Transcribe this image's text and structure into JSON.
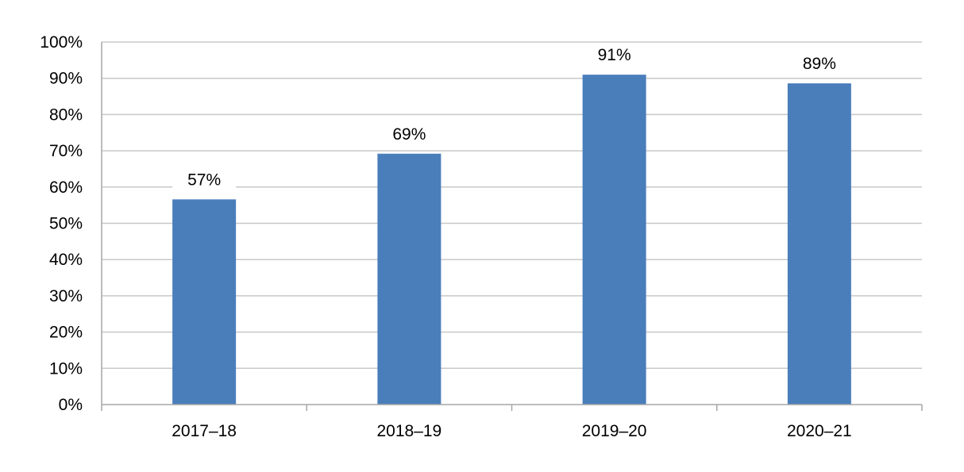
{
  "chart_data": {
    "type": "bar",
    "categories": [
      "2017–18",
      "2018–19",
      "2019–20",
      "2020–21"
    ],
    "values": [
      56.6,
      69.2,
      91.0,
      88.6
    ],
    "data_labels": [
      "57%",
      "69%",
      "91%",
      "89%"
    ],
    "ylim": [
      0,
      100
    ],
    "yticks": [
      0,
      10,
      20,
      30,
      40,
      50,
      60,
      70,
      80,
      90,
      100
    ],
    "ytick_labels": [
      "0%",
      "10%",
      "20%",
      "30%",
      "40%",
      "50%",
      "60%",
      "70%",
      "80%",
      "90%",
      "100%"
    ],
    "grid": true,
    "legend": "none",
    "colors": {
      "bar": "#4a7ebb",
      "grid": "#c8c8c8",
      "axis": "#a6a6a6"
    }
  }
}
